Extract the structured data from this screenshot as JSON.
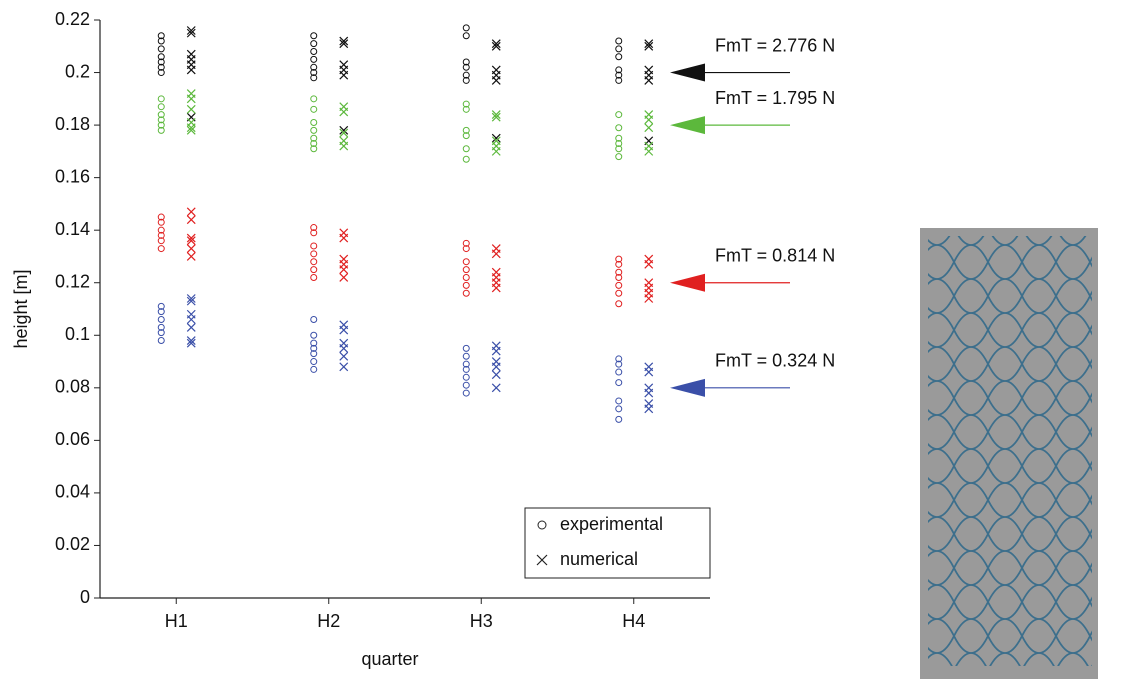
{
  "chart_data": {
    "type": "scatter",
    "x_label": "quarter",
    "y_label": "height [m]",
    "categories": [
      "H1",
      "H2",
      "H3",
      "H4"
    ],
    "ylim": [
      0,
      0.22
    ],
    "yticks": [
      0,
      0.02,
      0.04,
      0.06,
      0.08,
      0.1,
      0.12,
      0.14,
      0.16,
      0.18,
      0.2,
      0.22
    ],
    "legend": [
      {
        "name": "experimental",
        "marker": "circle"
      },
      {
        "name": "numerical",
        "marker": "cross"
      }
    ],
    "legend_position": "lower right",
    "groups": [
      {
        "label": "FmT = 2.776 N",
        "level": 0.2,
        "color": "#111111",
        "experimental": [
          [
            0.214,
            0.212,
            0.209,
            0.206,
            0.204,
            0.202,
            0.2
          ],
          [
            0.214,
            0.211,
            0.208,
            0.205,
            0.202,
            0.2,
            0.198
          ],
          [
            0.217,
            0.214,
            0.204,
            0.202,
            0.199,
            0.197
          ],
          [
            0.212,
            0.209,
            0.206,
            0.201,
            0.199,
            0.197
          ]
        ],
        "numerical": [
          [
            0.216,
            0.215,
            0.207,
            0.205,
            0.203,
            0.201,
            0.183
          ],
          [
            0.212,
            0.211,
            0.203,
            0.201,
            0.199,
            0.178
          ],
          [
            0.211,
            0.21,
            0.201,
            0.199,
            0.197,
            0.175
          ],
          [
            0.211,
            0.21,
            0.201,
            0.199,
            0.197,
            0.174
          ]
        ]
      },
      {
        "label": "FmT = 1.795 N",
        "level": 0.18,
        "color": "#5cb83c",
        "experimental": [
          [
            0.19,
            0.187,
            0.184,
            0.182,
            0.18,
            0.178
          ],
          [
            0.19,
            0.186,
            0.181,
            0.178,
            0.175,
            0.173,
            0.171
          ],
          [
            0.188,
            0.186,
            0.178,
            0.176,
            0.171,
            0.167
          ],
          [
            0.184,
            0.179,
            0.175,
            0.173,
            0.171,
            0.168
          ]
        ],
        "numerical": [
          [
            0.192,
            0.19,
            0.186,
            0.181,
            0.179,
            0.178
          ],
          [
            0.187,
            0.185,
            0.177,
            0.174,
            0.172
          ],
          [
            0.184,
            0.183,
            0.174,
            0.172,
            0.17
          ],
          [
            0.184,
            0.182,
            0.179,
            0.172,
            0.17
          ]
        ]
      },
      {
        "label": "FmT = 0.814 N",
        "level": 0.12,
        "color": "#e02020",
        "experimental": [
          [
            0.145,
            0.143,
            0.14,
            0.138,
            0.136,
            0.133
          ],
          [
            0.141,
            0.139,
            0.134,
            0.131,
            0.128,
            0.125,
            0.122
          ],
          [
            0.135,
            0.133,
            0.128,
            0.125,
            0.122,
            0.119,
            0.116
          ],
          [
            0.129,
            0.127,
            0.124,
            0.122,
            0.119,
            0.116,
            0.112
          ]
        ],
        "numerical": [
          [
            0.147,
            0.144,
            0.137,
            0.136,
            0.133,
            0.13
          ],
          [
            0.139,
            0.137,
            0.129,
            0.127,
            0.125,
            0.122
          ],
          [
            0.133,
            0.131,
            0.124,
            0.122,
            0.12,
            0.118
          ],
          [
            0.129,
            0.127,
            0.12,
            0.118,
            0.116,
            0.114
          ]
        ]
      },
      {
        "label": "FmT = 0.324 N",
        "level": 0.08,
        "color": "#3a4fa8",
        "experimental": [
          [
            0.111,
            0.109,
            0.106,
            0.103,
            0.101,
            0.098
          ],
          [
            0.106,
            0.1,
            0.097,
            0.095,
            0.093,
            0.09,
            0.087
          ],
          [
            0.095,
            0.092,
            0.089,
            0.087,
            0.084,
            0.081,
            0.078
          ],
          [
            0.091,
            0.089,
            0.086,
            0.082,
            0.075,
            0.072,
            0.068
          ]
        ],
        "numerical": [
          [
            0.114,
            0.113,
            0.108,
            0.106,
            0.103,
            0.098,
            0.097
          ],
          [
            0.104,
            0.102,
            0.097,
            0.095,
            0.092,
            0.088
          ],
          [
            0.096,
            0.094,
            0.09,
            0.088,
            0.085,
            0.08
          ],
          [
            0.088,
            0.086,
            0.08,
            0.078,
            0.074,
            0.072
          ]
        ]
      }
    ]
  }
}
